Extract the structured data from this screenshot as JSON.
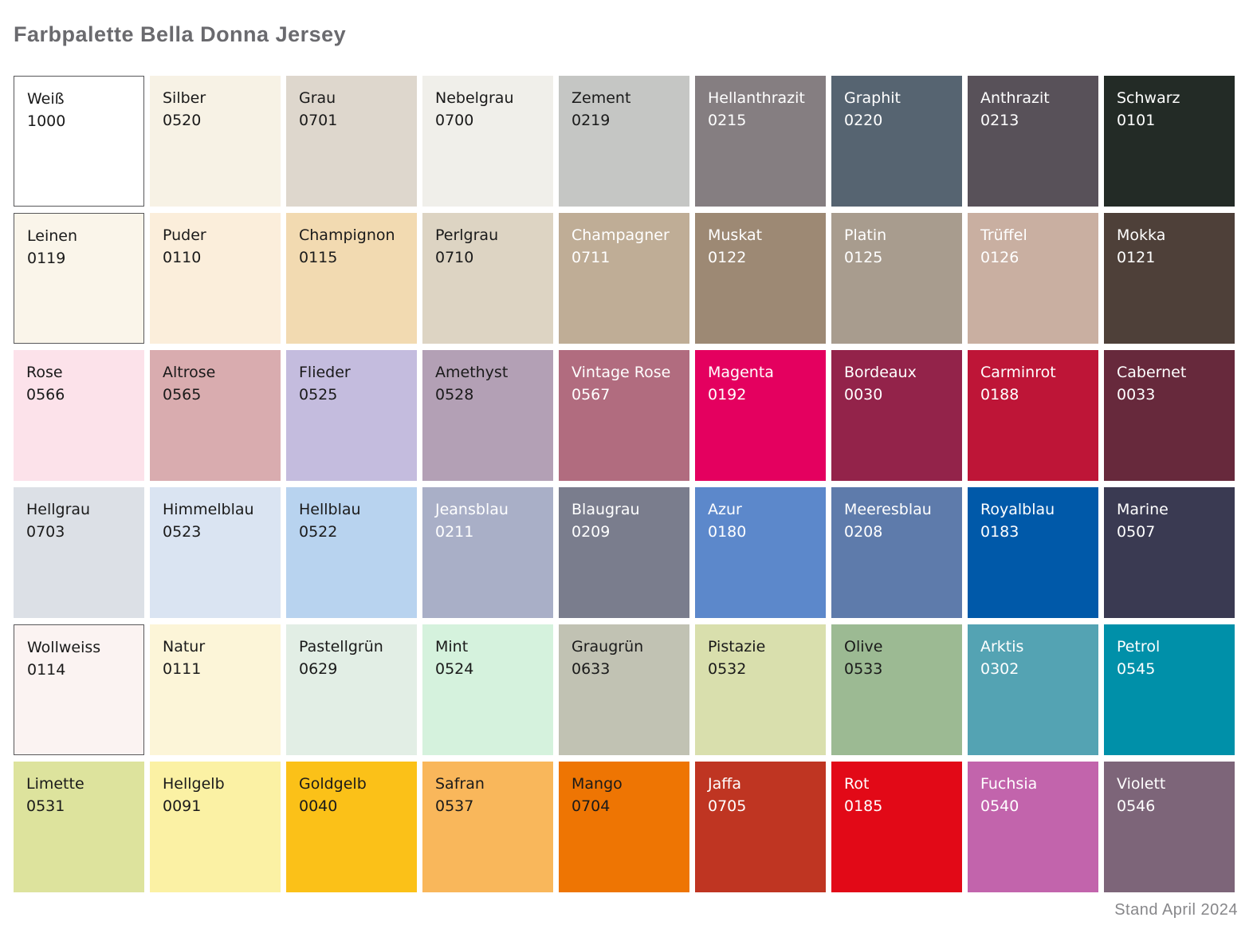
{
  "page": {
    "title": "Farbpalette Bella Donna Jersey",
    "footer": "Stand April 2024"
  },
  "palette": {
    "columns": 9,
    "rows": 6,
    "swatches": [
      {
        "name": "Weiß",
        "code": "1000",
        "bg": "#FFFFFF",
        "text": "#1A1A1A",
        "border": "#58585A"
      },
      {
        "name": "Silber",
        "code": "0520",
        "bg": "#F7F2E5",
        "text": "#1A1A1A"
      },
      {
        "name": "Grau",
        "code": "0701",
        "bg": "#DED7CD",
        "text": "#1A1A1A"
      },
      {
        "name": "Nebelgrau",
        "code": "0700",
        "bg": "#F0EFEA",
        "text": "#1A1A1A"
      },
      {
        "name": "Zement",
        "code": "0219",
        "bg": "#C5C6C4",
        "text": "#1A1A1A"
      },
      {
        "name": "Hellanthrazit",
        "code": "0215",
        "bg": "#857E81",
        "text": "#FFFFFF"
      },
      {
        "name": "Graphit",
        "code": "0220",
        "bg": "#566471",
        "text": "#FFFFFF"
      },
      {
        "name": "Anthrazit",
        "code": "0213",
        "bg": "#585159",
        "text": "#FFFFFF"
      },
      {
        "name": "Schwarz",
        "code": "0101",
        "bg": "#232B26",
        "text": "#FFFFFF"
      },
      {
        "name": "Leinen",
        "code": "0119",
        "bg": "#FAF5EA",
        "text": "#1A1A1A",
        "border": "#58585A"
      },
      {
        "name": "Puder",
        "code": "0110",
        "bg": "#FBEEDB",
        "text": "#1A1A1A"
      },
      {
        "name": "Champignon",
        "code": "0115",
        "bg": "#F2DAB1",
        "text": "#1A1A1A"
      },
      {
        "name": "Perlgrau",
        "code": "0710",
        "bg": "#DDD4C3",
        "text": "#1A1A1A"
      },
      {
        "name": "Champagner",
        "code": "0711",
        "bg": "#BFAD96",
        "text": "#FFFFFF"
      },
      {
        "name": "Muskat",
        "code": "0122",
        "bg": "#9D8974",
        "text": "#FFFFFF"
      },
      {
        "name": "Platin",
        "code": "0125",
        "bg": "#A89C8E",
        "text": "#FFFFFF"
      },
      {
        "name": "Trüffel",
        "code": "0126",
        "bg": "#C9AFA1",
        "text": "#FFFFFF"
      },
      {
        "name": "Mokka",
        "code": "0121",
        "bg": "#4E4039",
        "text": "#FFFFFF"
      },
      {
        "name": "Rose",
        "code": "0566",
        "bg": "#FCE2EA",
        "text": "#1A1A1A"
      },
      {
        "name": "Altrose",
        "code": "0565",
        "bg": "#D9ACAF",
        "text": "#1A1A1A"
      },
      {
        "name": "Flieder",
        "code": "0525",
        "bg": "#C4BCDE",
        "text": "#1A1A1A"
      },
      {
        "name": "Amethyst",
        "code": "0528",
        "bg": "#B3A0B5",
        "text": "#1A1A1A"
      },
      {
        "name": "Vintage Rose",
        "code": "0567",
        "bg": "#B16C7F",
        "text": "#FFFFFF"
      },
      {
        "name": "Magenta",
        "code": "0192",
        "bg": "#E4005F",
        "text": "#FFFFFF"
      },
      {
        "name": "Bordeaux",
        "code": "0030",
        "bg": "#93234A",
        "text": "#FFFFFF"
      },
      {
        "name": "Carminrot",
        "code": "0188",
        "bg": "#BE1537",
        "text": "#FFFFFF"
      },
      {
        "name": "Cabernet",
        "code": "0033",
        "bg": "#67293C",
        "text": "#FFFFFF"
      },
      {
        "name": "Hellgrau",
        "code": "0703",
        "bg": "#DCE0E6",
        "text": "#1A1A1A"
      },
      {
        "name": "Himmelblau",
        "code": "0523",
        "bg": "#DAE4F2",
        "text": "#1A1A1A"
      },
      {
        "name": "Hellblau",
        "code": "0522",
        "bg": "#B8D3EF",
        "text": "#1A1A1A"
      },
      {
        "name": "Jeansblau",
        "code": "0211",
        "bg": "#A9AFC7",
        "text": "#FFFFFF"
      },
      {
        "name": "Blaugrau",
        "code": "0209",
        "bg": "#7A7D8D",
        "text": "#FFFFFF"
      },
      {
        "name": "Azur",
        "code": "0180",
        "bg": "#5C88CB",
        "text": "#FFFFFF"
      },
      {
        "name": "Meeresblau",
        "code": "0208",
        "bg": "#5E7BAB",
        "text": "#FFFFFF"
      },
      {
        "name": "Royalblau",
        "code": "0183",
        "bg": "#0059A9",
        "text": "#FFFFFF"
      },
      {
        "name": "Marine",
        "code": "0507",
        "bg": "#3A3A52",
        "text": "#FFFFFF"
      },
      {
        "name": "Wollweiss",
        "code": "0114",
        "bg": "#FBF3F2",
        "text": "#1A1A1A",
        "border": "#58585A"
      },
      {
        "name": "Natur",
        "code": "0111",
        "bg": "#FCF5D8",
        "text": "#1A1A1A"
      },
      {
        "name": "Pastellgrün",
        "code": "0629",
        "bg": "#E2EEE5",
        "text": "#1A1A1A"
      },
      {
        "name": "Mint",
        "code": "0524",
        "bg": "#D5F2DD",
        "text": "#1A1A1A"
      },
      {
        "name": "Graugrün",
        "code": "0633",
        "bg": "#C1C2B3",
        "text": "#1A1A1A"
      },
      {
        "name": "Pistazie",
        "code": "0532",
        "bg": "#D9DFAD",
        "text": "#1A1A1A"
      },
      {
        "name": "Olive",
        "code": "0533",
        "bg": "#9CBA93",
        "text": "#1A1A1A"
      },
      {
        "name": "Arktis",
        "code": "0302",
        "bg": "#54A3B3",
        "text": "#FFFFFF"
      },
      {
        "name": "Petrol",
        "code": "0545",
        "bg": "#0090A9",
        "text": "#FFFFFF"
      },
      {
        "name": "Limette",
        "code": "0531",
        "bg": "#DDE39D",
        "text": "#1A1A1A"
      },
      {
        "name": "Hellgelb",
        "code": "0091",
        "bg": "#FBF1A4",
        "text": "#1A1A1A"
      },
      {
        "name": "Goldgelb",
        "code": "0040",
        "bg": "#FBC118",
        "text": "#1A1A1A"
      },
      {
        "name": "Safran",
        "code": "0537",
        "bg": "#F9B75B",
        "text": "#1A1A1A"
      },
      {
        "name": "Mango",
        "code": "0704",
        "bg": "#EE7503",
        "text": "#1A1A1A"
      },
      {
        "name": "Jaffa",
        "code": "0705",
        "bg": "#BF3522",
        "text": "#FFFFFF"
      },
      {
        "name": "Rot",
        "code": "0185",
        "bg": "#E20917",
        "text": "#FFFFFF"
      },
      {
        "name": "Fuchsia",
        "code": "0540",
        "bg": "#C264AC",
        "text": "#FFFFFF"
      },
      {
        "name": "Violett",
        "code": "0546",
        "bg": "#7D6579",
        "text": "#FFFFFF"
      }
    ]
  }
}
